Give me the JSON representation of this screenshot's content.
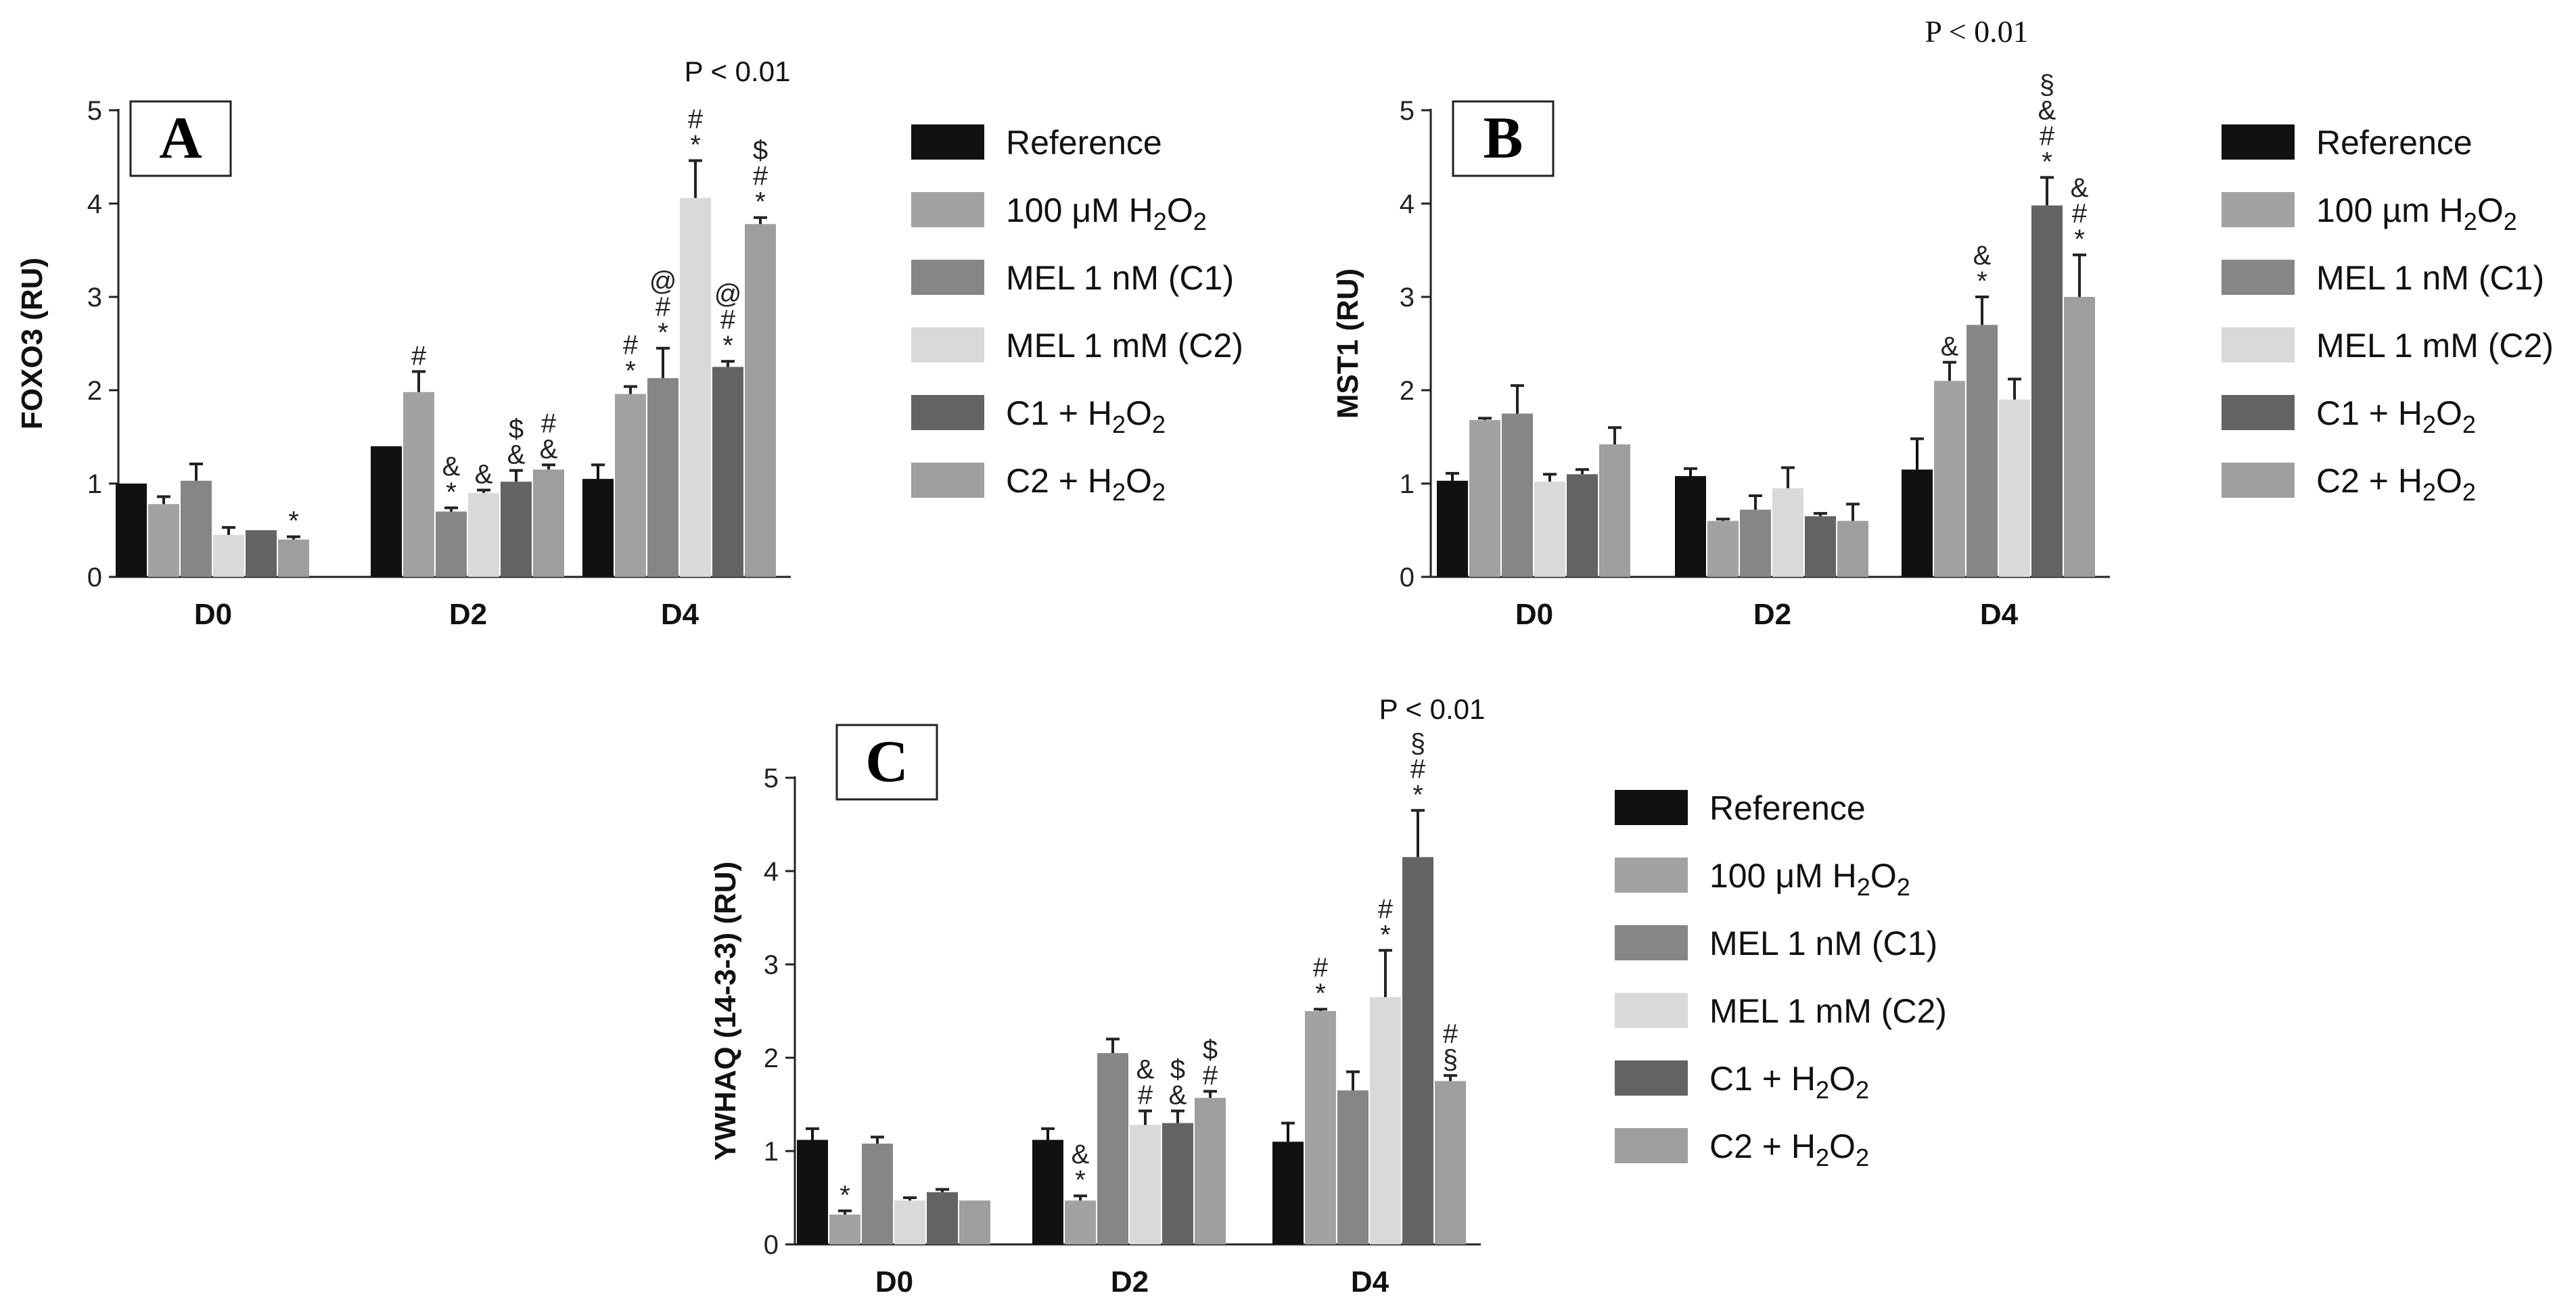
{
  "colors": {
    "Reference": "#111111",
    "100 µM H2O2": "#a2a2a2",
    "MEL 1 nM (C1)": "#868686",
    "MEL 1 mM (C2)": "#d9d9d9",
    "C1 + H2O2": "#636363",
    "C2 + H2O2": "#9e9e9e"
  },
  "chart_data": [
    {
      "type": "bar",
      "panel_label": "A",
      "title": "",
      "xlabel": "",
      "ylabel": "FOXO3 (RU)",
      "ylim": [
        0,
        5
      ],
      "yticks": [
        "0",
        "1",
        "2",
        "3",
        "4",
        "5"
      ],
      "categories": [
        "D0",
        "D2",
        "D4"
      ],
      "p_note": "P < 0.01",
      "legend": [
        "Reference",
        "100 μM H2O2",
        "MEL 1 nM (C1)",
        "MEL 1 mM (C2)",
        "C1 + H2O2",
        "C2 + H2O2"
      ],
      "series": [
        {
          "name": "Reference",
          "values": [
            1.0,
            1.4,
            1.05
          ],
          "errors": [
            0.0,
            0.0,
            0.15
          ],
          "labels": [
            "",
            "",
            ""
          ]
        },
        {
          "name": "100 µM H2O2",
          "values": [
            0.78,
            1.98,
            1.96
          ],
          "errors": [
            0.08,
            0.22,
            0.08
          ],
          "labels": [
            "",
            "#",
            "#*"
          ]
        },
        {
          "name": "MEL 1 nM (C1)",
          "values": [
            1.03,
            0.7,
            2.13
          ],
          "errors": [
            0.18,
            0.04,
            0.32
          ],
          "labels": [
            "",
            "&*",
            "#*"
          ]
        },
        {
          "name": "MEL 1 mM (C2)",
          "values": [
            0.45,
            0.9,
            4.06
          ],
          "errors": [
            0.08,
            0.03,
            0.4
          ],
          "labels": [
            "",
            "&",
            "#*"
          ]
        },
        {
          "name": "C1 + H2O2",
          "values": [
            0.5,
            1.02,
            2.25
          ],
          "errors": [
            0.0,
            0.12,
            0.06
          ],
          "labels": [
            "",
            "$&",
            "@#*"
          ]
        },
        {
          "name": "C2 + H2O2",
          "values": [
            0.4,
            1.15,
            3.78
          ],
          "errors": [
            0.03,
            0.05,
            0.07
          ],
          "labels": [
            "*",
            "#&",
            "$#*"
          ]
        }
      ],
      "extra_labels": [
        {
          "category": 2,
          "series": 2,
          "text": "@"
        }
      ]
    },
    {
      "type": "bar",
      "panel_label": "B",
      "title": "",
      "xlabel": "",
      "ylabel": "MST1 (RU)",
      "ylim": [
        0,
        5
      ],
      "yticks": [
        "0",
        "1",
        "2",
        "3",
        "4",
        "5"
      ],
      "categories": [
        "D0",
        "D2",
        "D4"
      ],
      "p_note": "P < 0.01",
      "legend": [
        "Reference",
        "100 µm H2O2",
        "MEL 1 nM (C1)",
        "MEL 1 mM (C2)",
        "C1 + H2O2",
        "C2 + H2O2"
      ],
      "series": [
        {
          "name": "Reference",
          "values": [
            1.03,
            1.08,
            1.15
          ],
          "errors": [
            0.08,
            0.08,
            0.33
          ],
          "labels": [
            "",
            "",
            ""
          ]
        },
        {
          "name": "100 µm H2O2",
          "values": [
            1.68,
            0.6,
            2.1
          ],
          "errors": [
            0.02,
            0.02,
            0.2
          ],
          "labels": [
            "",
            "",
            "&"
          ]
        },
        {
          "name": "MEL 1 nM (C1)",
          "values": [
            1.75,
            0.72,
            2.7
          ],
          "errors": [
            0.3,
            0.15,
            0.3
          ],
          "labels": [
            "",
            "",
            "&*"
          ]
        },
        {
          "name": "MEL 1 mM (C2)",
          "values": [
            1.02,
            0.95,
            1.9
          ],
          "errors": [
            0.08,
            0.22,
            0.22
          ],
          "labels": [
            "",
            "",
            ""
          ]
        },
        {
          "name": "C1 + H2O2",
          "values": [
            1.1,
            0.65,
            3.98
          ],
          "errors": [
            0.05,
            0.03,
            0.3
          ],
          "labels": [
            "",
            "",
            "§&#*"
          ]
        },
        {
          "name": "C2 + H2O2",
          "values": [
            1.42,
            0.6,
            3.0
          ],
          "errors": [
            0.18,
            0.18,
            0.45
          ],
          "labels": [
            "",
            "",
            "&#*"
          ]
        }
      ]
    },
    {
      "type": "bar",
      "panel_label": "C",
      "title": "",
      "xlabel": "",
      "ylabel": "YWHAQ (14-3-3) (RU)",
      "ylim": [
        0,
        5
      ],
      "yticks": [
        "0",
        "1",
        "2",
        "3",
        "4",
        "5"
      ],
      "categories": [
        "D0",
        "D2",
        "D4"
      ],
      "p_note": "P < 0.01",
      "legend": [
        "Reference",
        "100 μM H2O2",
        "MEL 1 nM (C1)",
        "MEL 1 mM (C2)",
        "C1 + H2O2",
        "C2 + H2O2"
      ],
      "series": [
        {
          "name": "Reference",
          "values": [
            1.12,
            1.12,
            1.1
          ],
          "errors": [
            0.12,
            0.12,
            0.2
          ],
          "labels": [
            "",
            "",
            ""
          ]
        },
        {
          "name": "100 µM H2O2",
          "values": [
            0.32,
            0.47,
            2.5
          ],
          "errors": [
            0.04,
            0.05,
            0.02
          ],
          "labels": [
            "*",
            "&*",
            "#*"
          ]
        },
        {
          "name": "MEL 1 nM (C1)",
          "values": [
            1.08,
            2.05,
            1.65
          ],
          "errors": [
            0.07,
            0.15,
            0.2
          ],
          "labels": [
            "",
            "",
            ""
          ]
        },
        {
          "name": "MEL 1 mM (C2)",
          "values": [
            0.47,
            1.28,
            2.65
          ],
          "errors": [
            0.03,
            0.15,
            0.5
          ],
          "labels": [
            "",
            "&#",
            "#*"
          ]
        },
        {
          "name": "C1 + H2O2",
          "values": [
            0.56,
            1.3,
            4.15
          ],
          "errors": [
            0.03,
            0.13,
            0.5
          ],
          "labels": [
            "",
            "$&",
            "§#*"
          ]
        },
        {
          "name": "C2 + H2O2",
          "values": [
            0.47,
            1.57,
            1.75
          ],
          "errors": [
            0.0,
            0.07,
            0.06
          ],
          "labels": [
            "",
            "$#",
            "#§"
          ]
        }
      ]
    }
  ]
}
